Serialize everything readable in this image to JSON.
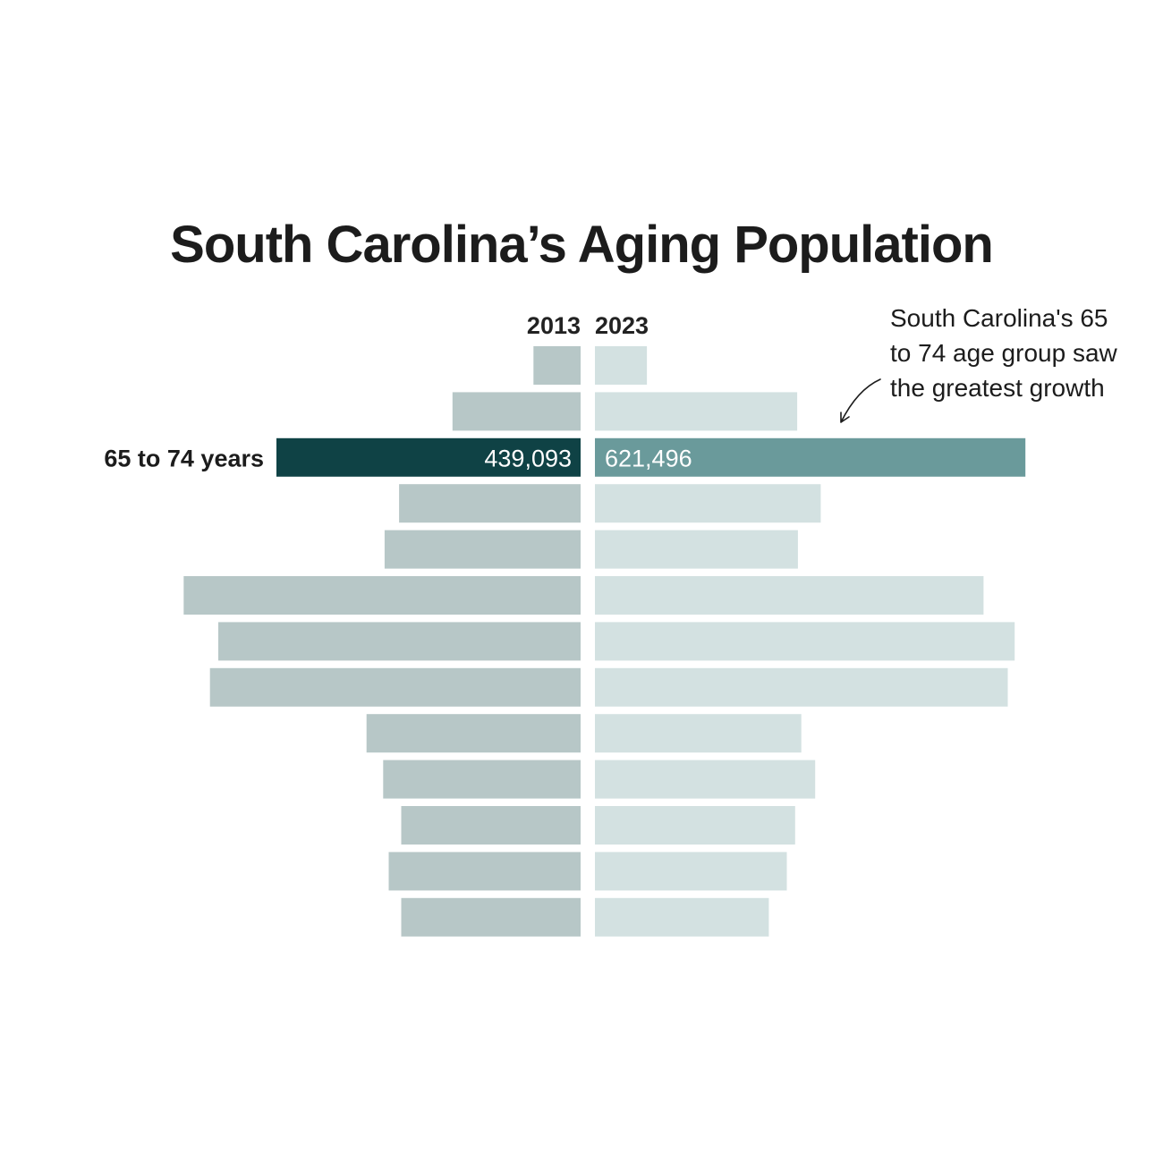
{
  "title": "South Carolina’s Aging Population",
  "chart_data": {
    "type": "bar",
    "orientation": "horizontal-mirrored",
    "title": "South Carolina’s Aging Population",
    "series": [
      {
        "name": "2013",
        "values": [
          68000,
          185000,
          439093,
          262000,
          283000,
          573000,
          523000,
          535000,
          309000,
          285000,
          259000,
          277000,
          259000
        ]
      },
      {
        "name": "2023",
        "values": [
          75000,
          292000,
          621496,
          326000,
          293000,
          561000,
          606000,
          596000,
          298000,
          318000,
          289000,
          277000,
          251000
        ]
      }
    ],
    "highlight": {
      "index": 2,
      "label": "65 to 74 years",
      "value_2013": "439,093",
      "value_2023": "621,496",
      "color_2013": "#0f4245",
      "color_2023": "#6a9a9b"
    },
    "colors": {
      "bar_2013": "#b7c7c7",
      "bar_2023": "#d3e1e1"
    },
    "annotation": {
      "lines": [
        "South Carolina's 65",
        "to 74 age group saw",
        "the greatest growth"
      ]
    }
  }
}
